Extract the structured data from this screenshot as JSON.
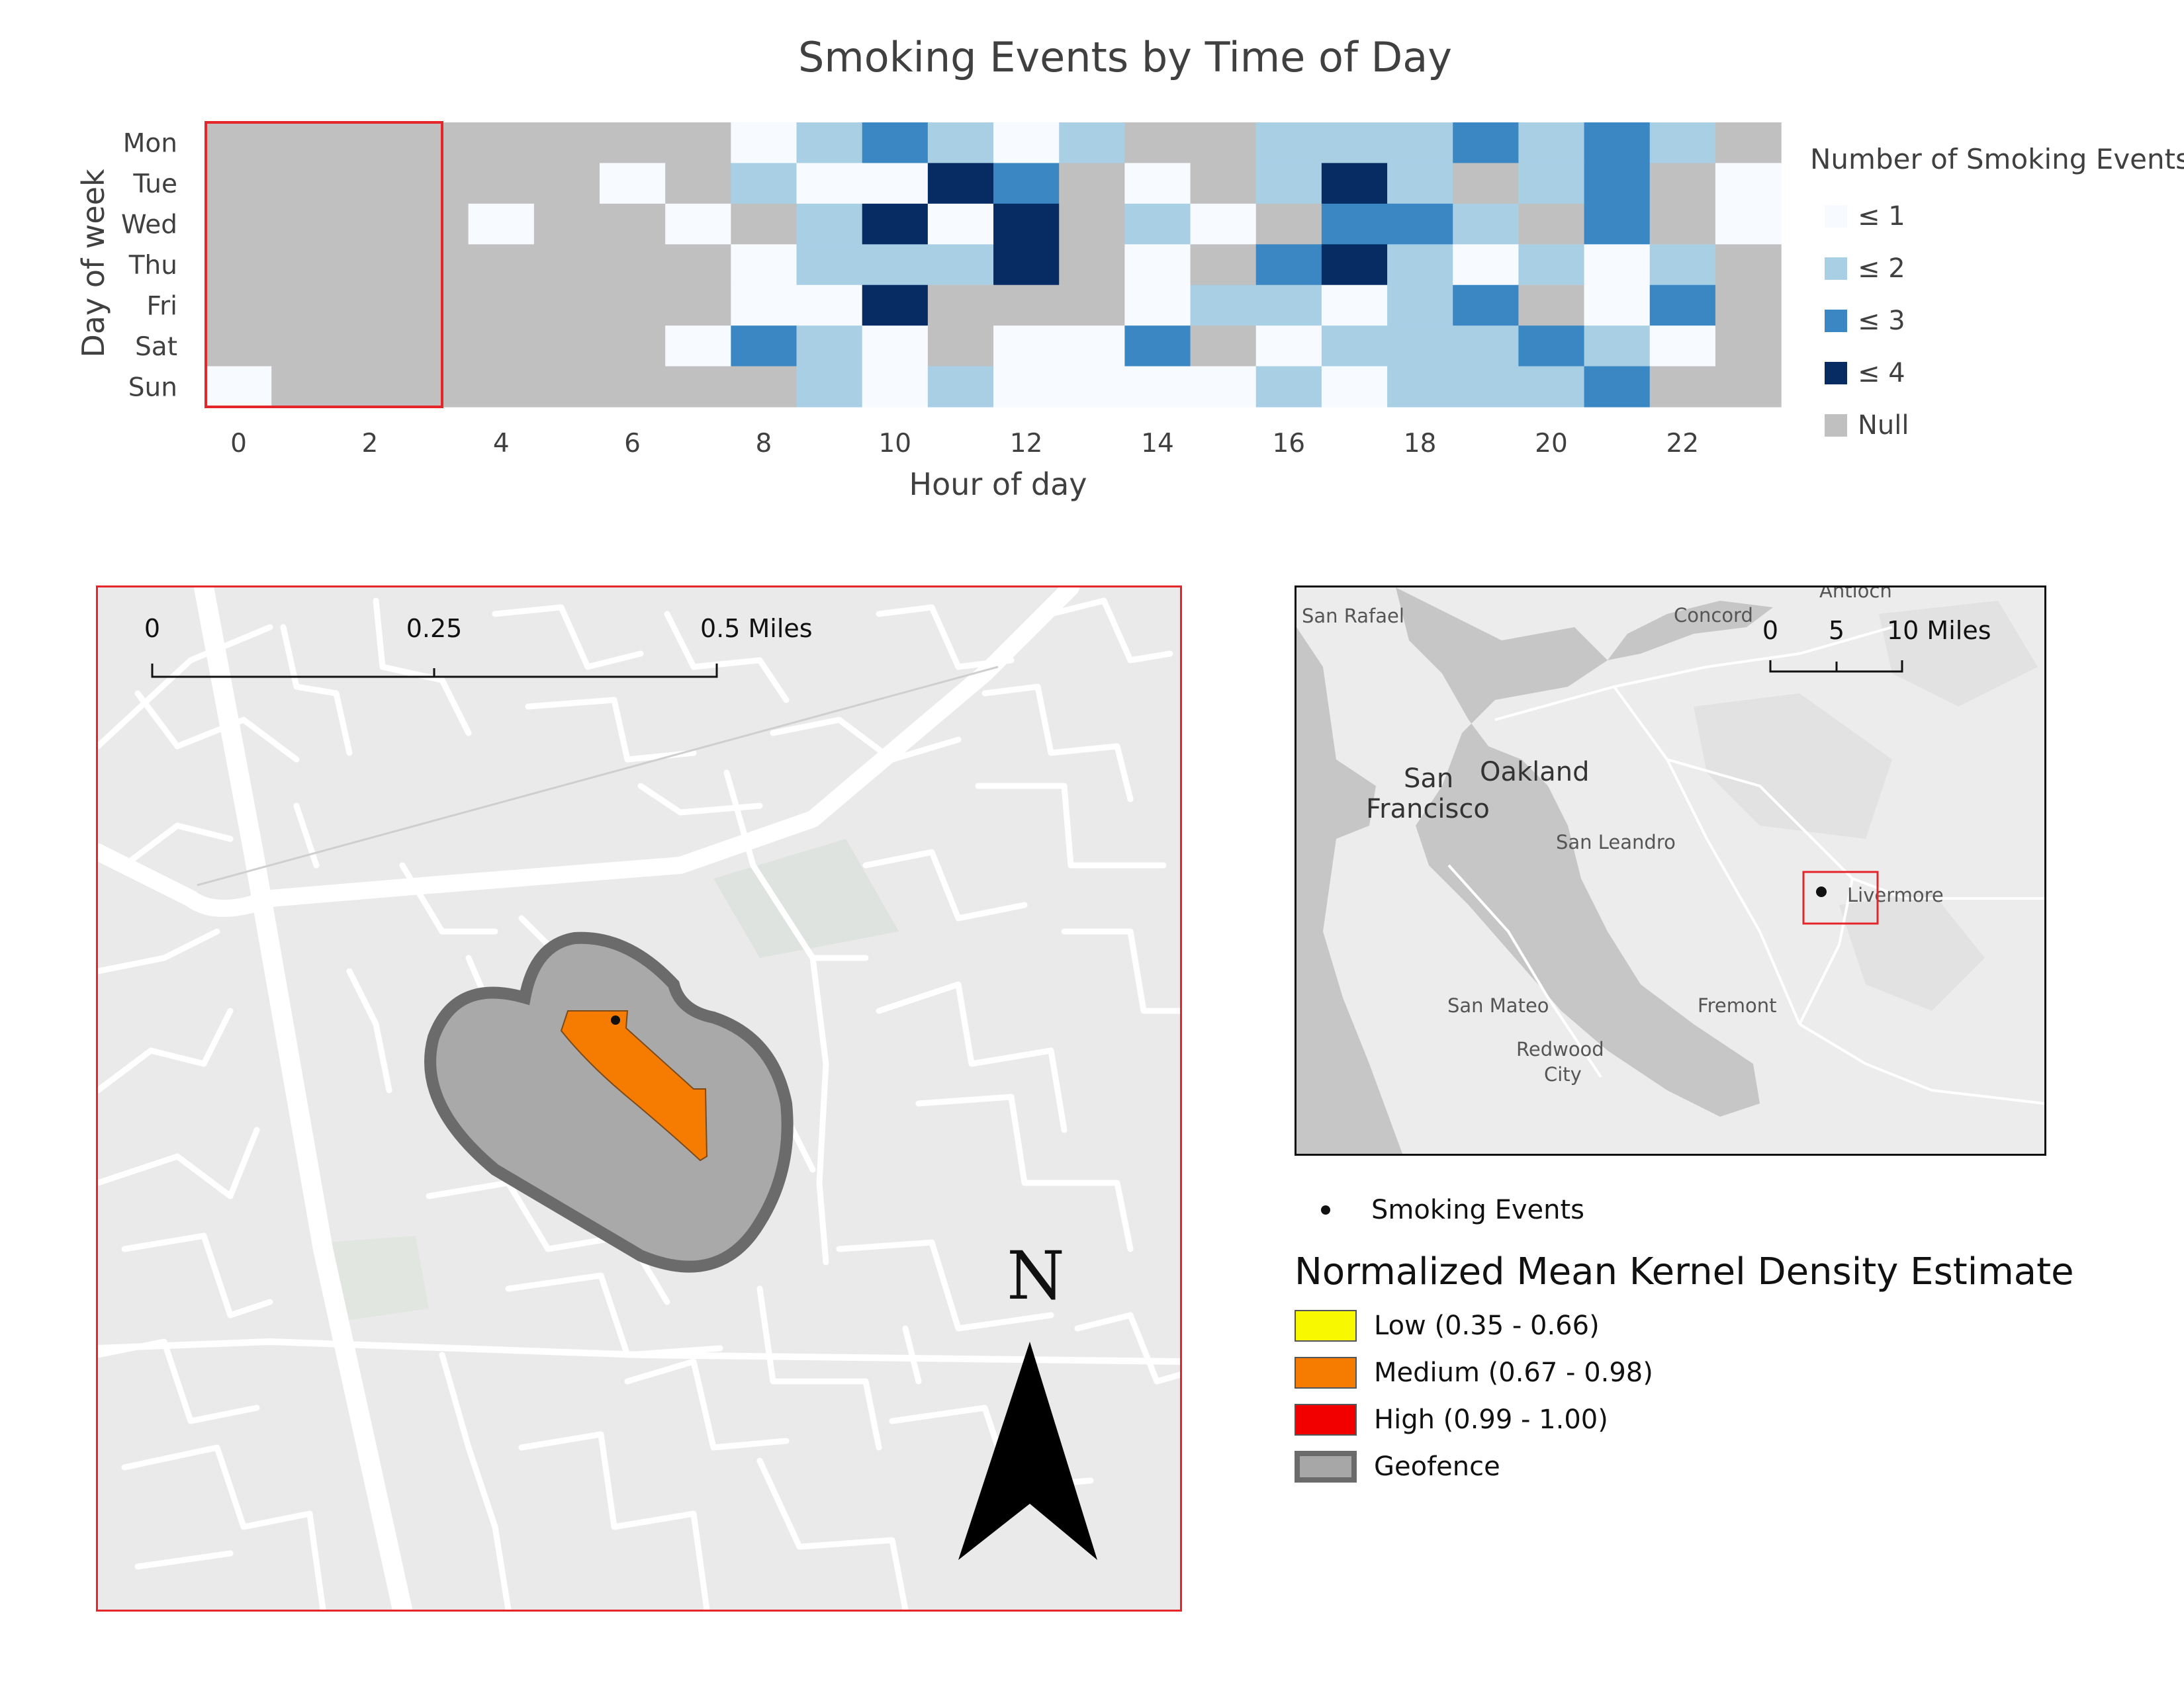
{
  "heatmap": {
    "title": "Smoking Events by Time of Day",
    "xlabel": "Hour of day",
    "ylabel": "Day of week",
    "legend_title": "Number of Smoking Events",
    "legend_items": [
      {
        "label": "≤ 1",
        "color": "#f7fbff"
      },
      {
        "label": "≤ 2",
        "color": "#a9cfe5"
      },
      {
        "label": "≤ 3",
        "color": "#3a87c3"
      },
      {
        "label": "≤ 4",
        "color": "#062c63"
      },
      {
        "label": "Null",
        "color": "#c0c0c0"
      }
    ]
  },
  "chart_data": {
    "type": "heatmap",
    "title": "Smoking Events by Time of Day",
    "xlabel": "Hour of day",
    "ylabel": "Day of week",
    "x": [
      0,
      1,
      2,
      3,
      4,
      5,
      6,
      7,
      8,
      9,
      10,
      11,
      12,
      13,
      14,
      15,
      16,
      17,
      18,
      19,
      20,
      21,
      22,
      23
    ],
    "x_ticks": [
      0,
      2,
      4,
      6,
      8,
      10,
      12,
      14,
      16,
      18,
      20,
      22
    ],
    "y": [
      "Mon",
      "Tue",
      "Wed",
      "Thu",
      "Fri",
      "Sat",
      "Sun"
    ],
    "values": [
      [
        null,
        null,
        null,
        null,
        null,
        null,
        null,
        null,
        1,
        2,
        3,
        2,
        1,
        2,
        null,
        null,
        2,
        2,
        2,
        3,
        2,
        3,
        2,
        null
      ],
      [
        null,
        null,
        null,
        null,
        null,
        null,
        1,
        null,
        2,
        1,
        1,
        4,
        3,
        null,
        1,
        null,
        2,
        4,
        2,
        null,
        2,
        3,
        null,
        1
      ],
      [
        null,
        null,
        null,
        null,
        1,
        null,
        null,
        1,
        null,
        2,
        4,
        1,
        4,
        null,
        2,
        1,
        null,
        3,
        3,
        2,
        null,
        3,
        null,
        1
      ],
      [
        null,
        null,
        null,
        null,
        null,
        null,
        null,
        null,
        1,
        2,
        2,
        2,
        4,
        null,
        1,
        null,
        3,
        4,
        2,
        1,
        2,
        1,
        2,
        null
      ],
      [
        null,
        null,
        null,
        null,
        null,
        null,
        null,
        null,
        1,
        1,
        4,
        null,
        null,
        null,
        1,
        2,
        2,
        1,
        2,
        3,
        null,
        1,
        3,
        null
      ],
      [
        null,
        null,
        null,
        null,
        null,
        null,
        null,
        1,
        3,
        2,
        1,
        null,
        1,
        1,
        3,
        null,
        1,
        2,
        2,
        2,
        3,
        2,
        1,
        null
      ],
      [
        1,
        null,
        null,
        null,
        null,
        null,
        null,
        null,
        null,
        2,
        1,
        2,
        1,
        1,
        1,
        1,
        2,
        1,
        2,
        2,
        2,
        3,
        null,
        null
      ]
    ],
    "highlight": {
      "hours": [
        0,
        3
      ],
      "days": [
        "Mon",
        "Sun"
      ],
      "color": "#e4262b"
    },
    "legend": {
      "title": "Number of Smoking Events",
      "placement": "right"
    }
  },
  "map_main": {
    "scale_labels": [
      "0",
      "0.25",
      "0.5 Miles"
    ],
    "north_label": "N"
  },
  "map_inset": {
    "scale_labels": [
      "0",
      "5",
      "10 Miles"
    ],
    "places": [
      {
        "name": "San Rafael"
      },
      {
        "name": "Concord"
      },
      {
        "name": "Antioch"
      },
      {
        "name": "San"
      },
      {
        "name": "Francisco"
      },
      {
        "name": "Oakland"
      },
      {
        "name": "San Leandro"
      },
      {
        "name": "Livermore"
      },
      {
        "name": "San Mateo"
      },
      {
        "name": "Fremont"
      },
      {
        "name": "Redwood"
      },
      {
        "name": "City"
      }
    ]
  },
  "legend": {
    "events_label": "Smoking Events",
    "kde_title": "Normalized Mean Kernel Density Estimate",
    "items": [
      {
        "label": "Low (0.35 - 0.66)",
        "color": "#f8f800"
      },
      {
        "label": "Medium (0.67 - 0.98)",
        "color": "#f57c00"
      },
      {
        "label": "High (0.99 - 1.00)",
        "color": "#f20000"
      },
      {
        "label": "Geofence",
        "color": "#a7a7a7"
      }
    ]
  }
}
